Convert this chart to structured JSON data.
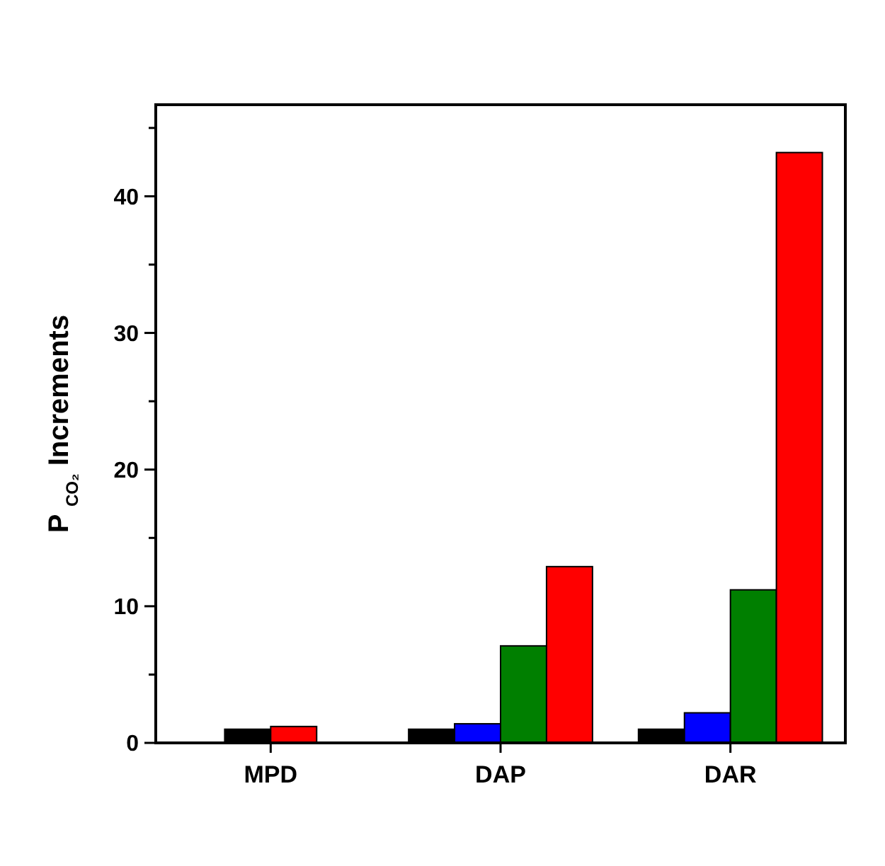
{
  "chart_data": {
    "type": "bar",
    "ylabel": "P $_{CO₂}$ Increments",
    "categories": [
      "MPD",
      "DAP",
      "DAR"
    ],
    "series": [
      {
        "color": "#000000",
        "values": [
          1.0,
          1.0,
          1.0
        ]
      },
      {
        "color": "#0000ff",
        "values": [
          null,
          1.4,
          2.2
        ]
      },
      {
        "color": "#007f00",
        "values": [
          null,
          7.1,
          11.2
        ]
      },
      {
        "color": "#ff0000",
        "values": [
          1.2,
          12.9,
          43.2
        ]
      }
    ],
    "ylim": [
      0,
      46.7
    ],
    "yticks": [
      0,
      {
        "value": 5,
        "label": null
      },
      10,
      {
        "value": 15,
        "label": null
      },
      20,
      {
        "value": 25,
        "label": null
      },
      30,
      {
        "value": 35,
        "label": null
      },
      40,
      {
        "value": 45,
        "label": null
      }
    ],
    "grid": false
  }
}
